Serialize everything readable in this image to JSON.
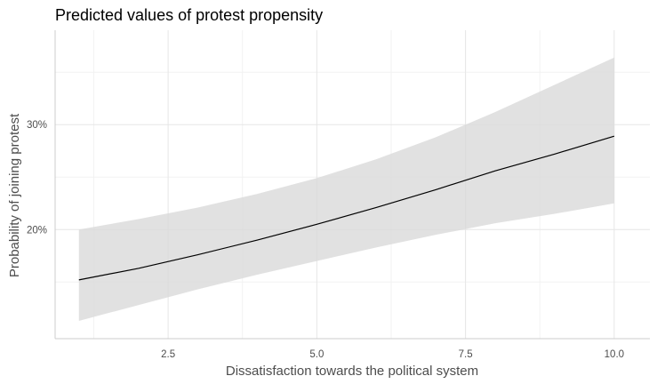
{
  "chart_data": {
    "type": "line",
    "title": "Predicted values of protest propensity",
    "xlabel": "Dissatisfaction towards the political system",
    "ylabel": "Probability of joining protest",
    "xlim": [
      0.6,
      10.6
    ],
    "ylim": [
      0.096,
      0.39
    ],
    "x_ticks": [
      2.5,
      5.0,
      7.5,
      10.0
    ],
    "x_tick_labels": [
      "2.5",
      "5.0",
      "7.5",
      "10.0"
    ],
    "y_ticks": [
      0.2,
      0.3
    ],
    "y_tick_labels": [
      "20%",
      "30%"
    ],
    "grid": true,
    "legend": "none",
    "series": [
      {
        "x": [
          1.0,
          2.0,
          3.0,
          4.0,
          5.0,
          6.0,
          7.0,
          8.0,
          9.0,
          10.0
        ],
        "predicted": [
          0.152,
          0.163,
          0.176,
          0.19,
          0.205,
          0.221,
          0.238,
          0.256,
          0.272,
          0.289
        ],
        "conf_low": [
          0.113,
          0.128,
          0.143,
          0.157,
          0.17,
          0.183,
          0.195,
          0.206,
          0.215,
          0.225
        ],
        "conf_high": [
          0.2,
          0.21,
          0.221,
          0.234,
          0.249,
          0.267,
          0.288,
          0.312,
          0.338,
          0.364
        ],
        "line_color": "#000000",
        "ribbon_color": "#d9d9d9"
      }
    ]
  }
}
